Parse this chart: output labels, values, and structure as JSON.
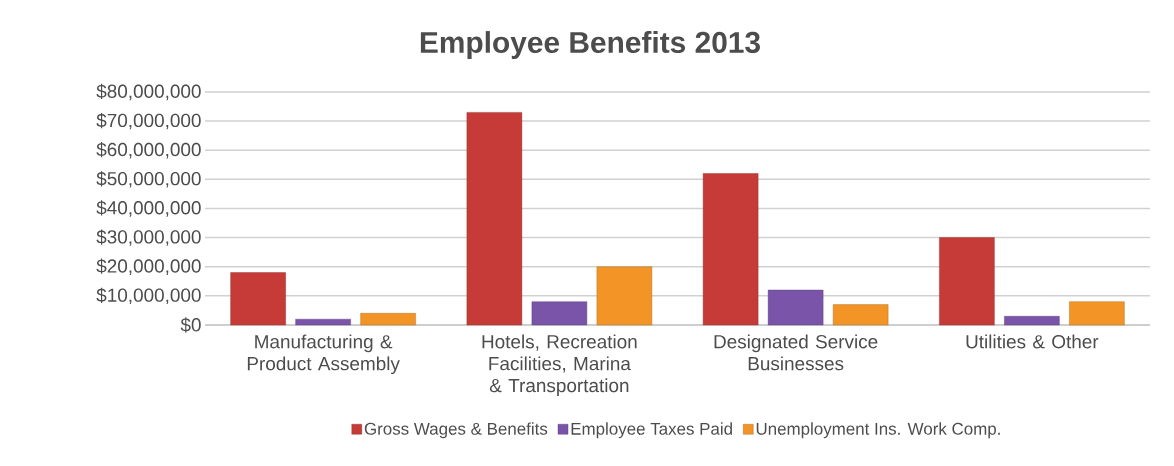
{
  "chart_data": {
    "type": "bar",
    "title": "Employee Benefits 2013",
    "categories": [
      "Manufacturing & Product Assembly",
      "Hotels, Recreation Facilities, Marina & Transportation",
      "Designated Service Businesses",
      "Utilities & Other"
    ],
    "series": [
      {
        "name": "Gross Wages & Benefits",
        "color": "#c63b37",
        "values": [
          18000000,
          73000000,
          52000000,
          30000000
        ]
      },
      {
        "name": "Employee Taxes Paid",
        "color": "#7a54a8",
        "values": [
          2000000,
          8000000,
          12000000,
          3000000
        ]
      },
      {
        "name": "Unemployment Ins. Work Comp.",
        "color": "#f29426",
        "values": [
          4000000,
          20000000,
          7000000,
          8000000
        ]
      }
    ],
    "ylim": [
      0,
      80000000
    ],
    "yticks": [
      {
        "value": 0,
        "label": "$0"
      },
      {
        "value": 10000000,
        "label": "$10,000,000"
      },
      {
        "value": 20000000,
        "label": "$20,000,000"
      },
      {
        "value": 30000000,
        "label": "$30,000,000"
      },
      {
        "value": 40000000,
        "label": "$40,000,000"
      },
      {
        "value": 50000000,
        "label": "$50,000,000"
      },
      {
        "value": 60000000,
        "label": "$60,000,000"
      },
      {
        "value": 70000000,
        "label": "$70,000,000"
      },
      {
        "value": 80000000,
        "label": "$80,000,000"
      }
    ],
    "grid": "y",
    "legend": "bottom"
  }
}
